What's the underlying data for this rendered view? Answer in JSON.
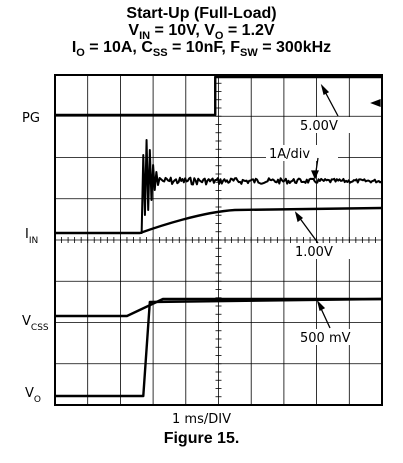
{
  "title": {
    "line1": "Start-Up (Full-Load)",
    "line2_a": "V",
    "line2_a_sub": "IN",
    "line2_b": " = 10V, V",
    "line2_b_sub": "O",
    "line2_c": " = 1.2V",
    "line3_a": "I",
    "line3_a_sub": "O",
    "line3_b": " = 10A, C",
    "line3_b_sub": "SS",
    "line3_c": " = 10nF, F",
    "line3_c_sub": "SW",
    "line3_d": " = 300kHz"
  },
  "caption": {
    "timebase": "1 ms/DIV",
    "figure": "Figure 15."
  },
  "chart_data": {
    "type": "line",
    "title": "Start-Up (Full-Load)",
    "xlabel": "1 ms/DIV",
    "x_unit": "ms",
    "x_range": [
      0,
      10
    ],
    "grid": true,
    "divisions": {
      "x": 10,
      "y": 8
    },
    "channels": [
      {
        "name": "PG",
        "label": "PG",
        "scale_label": "5.00V",
        "description": "Power-good rises at ~4 ms",
        "points": [
          [
            0,
            0
          ],
          [
            4.0,
            0
          ],
          [
            4.0,
            5.0
          ],
          [
            10,
            5.0
          ]
        ]
      },
      {
        "name": "IIN",
        "label_main": "I",
        "label_sub": "IN",
        "scale_label": "1A/div",
        "description": "Input current, ringing burst near 2.3 ms then settles",
        "points": [
          [
            0,
            0
          ],
          [
            2.3,
            0
          ],
          [
            2.35,
            1.2
          ],
          [
            2.6,
            1.1
          ],
          [
            3.0,
            1.05
          ],
          [
            10,
            1.05
          ]
        ]
      },
      {
        "name": "VIN_or_VCSS_ramp",
        "label_main": "V",
        "label_sub": "CSS",
        "scale_label": "1.00V",
        "description": "Soft-start ramp reference",
        "points": [
          [
            0,
            0
          ],
          [
            1.5,
            0
          ],
          [
            4.0,
            1.2
          ],
          [
            10,
            1.2
          ]
        ]
      },
      {
        "name": "VO",
        "label_main": "V",
        "label_sub": "O",
        "scale_label": "500 mV",
        "description": "Output voltage",
        "points": [
          [
            0,
            0
          ],
          [
            2.2,
            0
          ],
          [
            2.2,
            1.2
          ],
          [
            10,
            1.2
          ]
        ]
      }
    ],
    "channel_labels": [
      "PG",
      "IIN",
      "VCSS",
      "VO"
    ],
    "scale_labels": [
      "5.00V",
      "1A/div",
      "1.00V",
      "500 mV"
    ]
  }
}
